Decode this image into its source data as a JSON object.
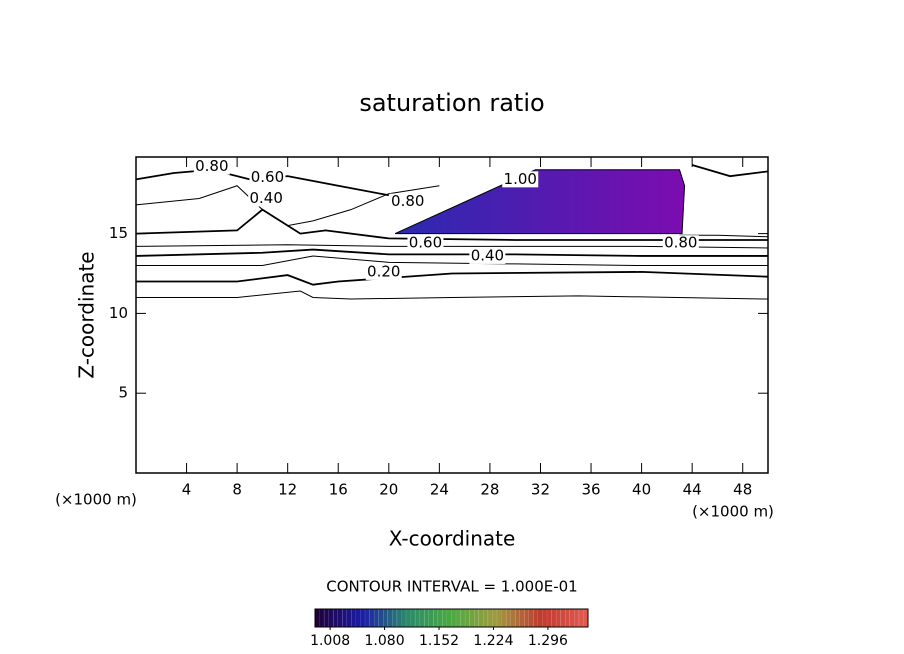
{
  "chart_data": {
    "type": "contour",
    "title": "saturation ratio",
    "xlabel": "X-coordinate",
    "ylabel": "Z-coordinate",
    "xunit_left": "(×1000 m)",
    "xunit_right": "(×1000 m)",
    "xlim": [
      0,
      50
    ],
    "ylim": [
      0,
      19.8
    ],
    "xticks": [
      4,
      8,
      12,
      16,
      20,
      24,
      28,
      32,
      36,
      40,
      44,
      48
    ],
    "yticks": [
      5,
      10,
      15
    ],
    "contour_interval_text": "CONTOUR INTERVAL = 1.000E-01",
    "line_color": "#000000",
    "contours": [
      {
        "x": [
          0,
          8,
          13,
          14,
          17,
          25,
          35,
          50
        ],
        "y": [
          11.0,
          11.0,
          11.4,
          11.0,
          10.9,
          11.0,
          11.1,
          10.9
        ]
      },
      {
        "x": [
          0,
          8,
          12,
          14,
          16,
          25,
          40,
          50
        ],
        "y": [
          12.0,
          12.0,
          12.4,
          11.8,
          12.0,
          12.5,
          12.6,
          12.3
        ]
      },
      {
        "x": [
          0,
          10,
          14,
          20,
          30,
          40,
          50
        ],
        "y": [
          13.0,
          13.0,
          13.6,
          13.2,
          13.1,
          13.0,
          13.0
        ]
      },
      {
        "x": [
          0,
          10,
          14,
          20,
          30,
          40,
          50
        ],
        "y": [
          13.6,
          13.8,
          14.0,
          13.7,
          13.7,
          13.6,
          13.6
        ]
      },
      {
        "x": [
          0,
          12,
          20,
          30,
          40,
          50
        ],
        "y": [
          14.2,
          14.3,
          14.2,
          14.2,
          14.2,
          14.1
        ]
      },
      {
        "x": [
          0,
          8,
          10,
          13,
          15,
          20,
          30,
          42,
          50
        ],
        "y": [
          15.0,
          15.2,
          16.5,
          15.0,
          15.2,
          14.7,
          14.6,
          14.6,
          14.6
        ]
      },
      {
        "x": [
          0,
          5,
          8,
          10,
          12,
          14,
          17,
          20,
          24
        ],
        "y": [
          16.8,
          17.2,
          18.0,
          16.5,
          15.5,
          15.8,
          16.5,
          17.5,
          18.0
        ]
      },
      {
        "x": [
          0,
          3,
          6,
          9,
          12,
          16,
          20
        ],
        "y": [
          18.4,
          18.8,
          19.0,
          18.4,
          18.6,
          18.0,
          17.4
        ]
      },
      {
        "x": [
          43,
          46,
          50
        ],
        "y": [
          14.9,
          14.9,
          14.8
        ]
      },
      {
        "x": [
          44,
          47,
          50
        ],
        "y": [
          19.3,
          18.6,
          18.9
        ]
      }
    ],
    "contour_labels": [
      {
        "value": 0.8,
        "label": "0.80",
        "x": 6.0,
        "y": 19.2
      },
      {
        "value": 0.6,
        "label": "0.60",
        "x": 10.4,
        "y": 18.5
      },
      {
        "value": 0.4,
        "label": "0.40",
        "x": 10.3,
        "y": 17.2
      },
      {
        "value": 0.8,
        "label": "0.80",
        "x": 21.5,
        "y": 17.0
      },
      {
        "value": 0.6,
        "label": "0.60",
        "x": 22.9,
        "y": 14.4
      },
      {
        "value": 0.4,
        "label": "0.40",
        "x": 27.8,
        "y": 13.6
      },
      {
        "value": 0.2,
        "label": "0.20",
        "x": 19.6,
        "y": 12.6
      },
      {
        "value": 0.8,
        "label": "0.80",
        "x": 43.1,
        "y": 14.4
      },
      {
        "value": 1.0,
        "label": "1.00",
        "x": 30.4,
        "y": 18.4
      }
    ],
    "fill": {
      "x": [
        20.5,
        31.6,
        43.0,
        43.4,
        43.2,
        20.5
      ],
      "y": [
        15.0,
        19.0,
        19.0,
        18.0,
        15.0,
        15.0
      ],
      "colors": [
        "#2a2ab0",
        "#7c0cb0"
      ]
    },
    "clim": [
      0.988,
      1.349
    ],
    "colormap": [
      "#20003a",
      "#1c1ca8",
      "#2a8a6a",
      "#4caa40",
      "#a09a40",
      "#c03a30",
      "#e05a50"
    ],
    "cticks": [
      {
        "value": 1.008,
        "label": "1.008"
      },
      {
        "value": 1.08,
        "label": "1.080"
      },
      {
        "value": 1.152,
        "label": "1.152"
      },
      {
        "value": 1.224,
        "label": "1.224"
      },
      {
        "value": 1.296,
        "label": "1.296"
      }
    ]
  }
}
